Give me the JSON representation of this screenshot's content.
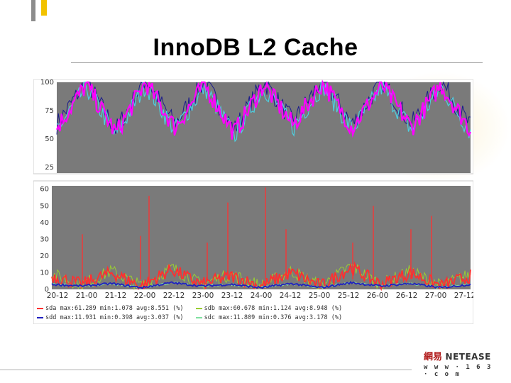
{
  "slide": {
    "title": "InnoDB L2 Cache"
  },
  "logo": {
    "cjk": "網易",
    "name": "NETEASE",
    "url": "w w w · 1 6 3 · c o m"
  },
  "chart_data": [
    {
      "type": "line",
      "title": "",
      "xlabel": "",
      "ylabel": "",
      "ylim": [
        20,
        100
      ],
      "yticks": [
        25,
        50,
        75,
        100
      ],
      "grid": false,
      "background": "#7a7a7a",
      "colors": {
        "primary": "#ff00ff",
        "secondary": "#4dd0e1",
        "tertiary": "#1a1a8c"
      },
      "x": [
        "20-12",
        "21-00",
        "21-12",
        "22-00",
        "22-12",
        "23-00",
        "23-12",
        "24-00",
        "24-12",
        "25-00",
        "25-12",
        "26-00",
        "26-12",
        "27-00",
        "27-12"
      ],
      "series": [
        {
          "values": [
            60,
            98,
            55,
            100,
            60,
            98,
            55,
            98,
            62,
            100,
            60,
            98,
            60,
            98,
            58
          ]
        }
      ]
    },
    {
      "type": "line",
      "title": "",
      "xlabel": "",
      "ylabel": "",
      "ylim": [
        0,
        62
      ],
      "yticks": [
        0,
        10,
        20,
        30,
        40,
        50,
        60
      ],
      "grid": false,
      "background": "#7a7a7a",
      "x": [
        "20-12",
        "21-00",
        "21-12",
        "22-00",
        "22-12",
        "23-00",
        "23-12",
        "24-00",
        "24-12",
        "25-00",
        "25-12",
        "26-00",
        "26-12",
        "27-00",
        "27-12"
      ],
      "series": [
        {
          "name": "sda",
          "color": "#ff3030",
          "values": [
            8,
            3,
            10,
            2,
            12,
            3,
            8,
            2,
            10,
            2,
            13,
            3,
            10,
            2,
            8
          ],
          "legend": "max:61.289 min:1.078 avg:8.551 (%)"
        },
        {
          "name": "sdb",
          "color": "#9acd32",
          "values": [
            9,
            3,
            11,
            2,
            13,
            3,
            9,
            2,
            11,
            2,
            14,
            3,
            11,
            2,
            9
          ],
          "legend": "max:60.678 min:1.124 avg:8.948 (%)"
        },
        {
          "name": "sdd",
          "color": "#2020c0",
          "values": [
            3,
            2,
            3.5,
            1,
            4,
            2,
            3,
            1,
            3.5,
            1,
            4,
            2,
            3.5,
            1,
            3
          ],
          "legend": "max:11.931 min:0.398 avg:3.037 (%)"
        },
        {
          "name": "sdc",
          "color": "#80e0a0",
          "values": [
            3,
            2,
            3.5,
            1,
            4,
            2,
            3,
            1,
            3.5,
            1,
            4,
            2,
            3.5,
            1,
            3
          ],
          "legend": "max:11.809 min:0.376 avg:3.178 (%)"
        }
      ],
      "peaks": [
        {
          "series": "sda",
          "x": "21-00",
          "value": 33
        },
        {
          "series": "sda",
          "x": "22-00",
          "value": 56
        },
        {
          "series": "sda",
          "x": "22-00",
          "value": 32
        },
        {
          "series": "sda",
          "x": "23-00",
          "value": 28
        },
        {
          "series": "sda",
          "x": "23-12",
          "value": 52
        },
        {
          "series": "sda",
          "x": "24-00",
          "value": 61
        },
        {
          "series": "sda",
          "x": "24-12",
          "value": 36
        },
        {
          "series": "sda",
          "x": "25-12",
          "value": 28
        },
        {
          "series": "sda",
          "x": "26-00",
          "value": 50
        },
        {
          "series": "sda",
          "x": "26-12",
          "value": 36
        },
        {
          "series": "sda",
          "x": "27-00",
          "value": 44
        }
      ]
    }
  ]
}
